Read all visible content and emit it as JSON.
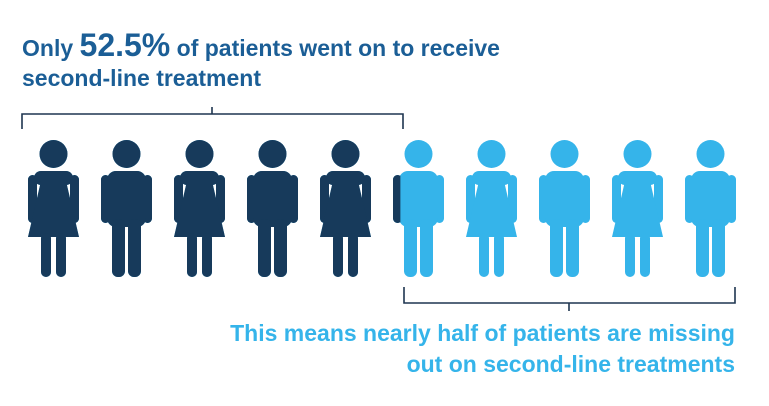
{
  "headline": {
    "prefix": "Only ",
    "highlight": "52.5%",
    "suffix": " of patients went on to receive",
    "line2": "second-line treatment"
  },
  "footnote": {
    "line1": "This means nearly half of patients are missing",
    "line2": "out on second-line treatments"
  },
  "colors": {
    "dark": "#173a5b",
    "light": "#35b4ea",
    "headline": "#1b5e96"
  },
  "people": [
    {
      "figure": "woman-icon",
      "treated_fraction": 1
    },
    {
      "figure": "man-icon",
      "treated_fraction": 1
    },
    {
      "figure": "woman-icon",
      "treated_fraction": 1
    },
    {
      "figure": "man-icon",
      "treated_fraction": 1
    },
    {
      "figure": "woman-icon",
      "treated_fraction": 1
    },
    {
      "figure": "man-icon",
      "treated_fraction": 0.25
    },
    {
      "figure": "woman-icon",
      "treated_fraction": 0
    },
    {
      "figure": "man-icon",
      "treated_fraction": 0
    },
    {
      "figure": "woman-icon",
      "treated_fraction": 0
    },
    {
      "figure": "man-icon",
      "treated_fraction": 0
    }
  ]
}
